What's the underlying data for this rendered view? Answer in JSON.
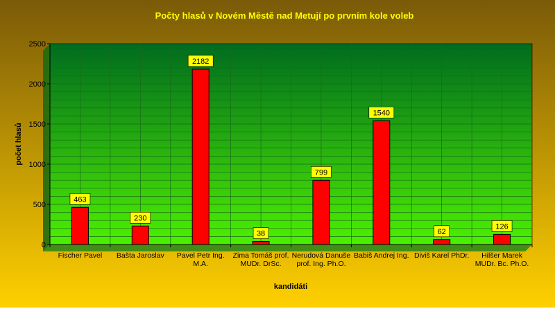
{
  "colors": {
    "background_top": "#7a5a08",
    "background_bottom": "#ffd000",
    "plot_top": "#006b1e",
    "plot_bottom": "#4cf000",
    "bar_fill": "#ff0000",
    "bar_stroke": "#000000",
    "label_box": "#ffff00",
    "title": "#ffff00",
    "gridline": "#1a6a1a"
  },
  "chart_data": {
    "type": "bar",
    "title": "Počty hlasů v Novém Městě nad Metují po prvním kole voleb",
    "xlabel": "kandidáti",
    "ylabel": "počet hlasů",
    "ylim": [
      0,
      2500
    ],
    "yticks": [
      "0",
      "500",
      "1000",
      "1500",
      "2000",
      "2500"
    ],
    "grid": true,
    "categories": [
      [
        "Fischer Pavel"
      ],
      [
        "Bašta Jaroslav"
      ],
      [
        "Pavel Petr Ing.",
        "M.A."
      ],
      [
        "Zima Tomáš prof.",
        "MUDr. DrSc."
      ],
      [
        "Nerudová Danuše",
        "prof. Ing. Ph.O."
      ],
      [
        "Babiš Andrej Ing."
      ],
      [
        "Diviš Karel PhDr."
      ],
      [
        "Hilšer Marek",
        "MUDr. Bc. Ph.O."
      ]
    ],
    "values": [
      463,
      230,
      2182,
      38,
      799,
      1540,
      62,
      126
    ],
    "data_labels": [
      "463",
      "230",
      "2182",
      "38",
      "799",
      "1540",
      "62",
      "126"
    ]
  }
}
